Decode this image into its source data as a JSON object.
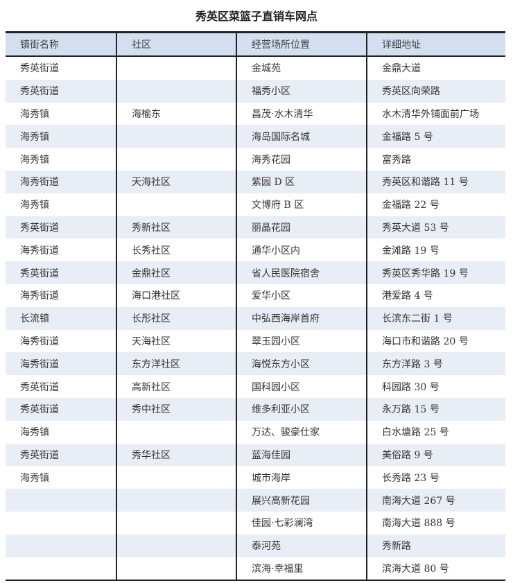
{
  "title": "秀英区菜篮子直销车网点",
  "columns": [
    "镇街名称",
    "社区",
    "经营场所位置",
    "详细地址"
  ],
  "rows": [
    [
      "秀英街道",
      "",
      "金城苑",
      "金鼎大道"
    ],
    [
      "秀英街道",
      "",
      "福秀小区",
      "秀英区向荣路"
    ],
    [
      "海秀镇",
      "海榆东",
      "昌茂·水木清华",
      "水木清华外铺面前广场"
    ],
    [
      "海秀镇",
      "",
      "海岛国际名城",
      "金福路 5 号"
    ],
    [
      "海秀镇",
      "",
      "海秀花园",
      "富秀路"
    ],
    [
      "海秀街道",
      "天海社区",
      "紫园 D 区",
      "秀英区和谐路 11 号"
    ],
    [
      "海秀镇",
      "",
      "文博府 B 区",
      "金福路 22 号"
    ],
    [
      "秀英街道",
      "秀新社区",
      "丽晶花园",
      "秀英大道 53 号"
    ],
    [
      "海秀街道",
      "长秀社区",
      "通华小区内",
      "金滩路 19 号"
    ],
    [
      "秀英街道",
      "金鼎社区",
      "省人民医院宿舍",
      "秀英区秀华路 19 号"
    ],
    [
      "海秀街道",
      "海口港社区",
      "爱华小区",
      "港爱路 4 号"
    ],
    [
      "长流镇",
      "长彤社区",
      "中弘西海岸首府",
      "长滨东二街 1 号"
    ],
    [
      "海秀街道",
      "天海社区",
      "翠玉园小区",
      "海口市和谐路 20 号"
    ],
    [
      "海秀街道",
      "东方洋社区",
      "海悦东方小区",
      "东方洋路 3 号"
    ],
    [
      "秀英街道",
      "高新社区",
      "国科园小区",
      "科园路 30 号"
    ],
    [
      "秀英街道",
      "秀中社区",
      "维多利亚小区",
      "永万路 15 号"
    ],
    [
      "海秀镇",
      "",
      "万达、骏豪仕家",
      "白水塘路 25 号"
    ],
    [
      "秀英街道",
      "秀华社区",
      "蓝海佳园",
      "美俗路 9 号"
    ],
    [
      "海秀镇",
      "",
      "城市海岸",
      "长秀路 23 号"
    ],
    [
      "",
      "",
      "展兴高新花园",
      "南海大道 267 号"
    ],
    [
      "",
      "",
      "佳园·七彩澜湾",
      "南海大道 888 号"
    ],
    [
      "",
      "",
      "泰河苑",
      "秀新路"
    ],
    [
      "",
      "",
      "滨海·幸福里",
      "滨海大道 80 号"
    ]
  ],
  "colors": {
    "header_bg": "#d3dff0",
    "stripe_bg": "#e9edf5",
    "rule": "#222222"
  }
}
